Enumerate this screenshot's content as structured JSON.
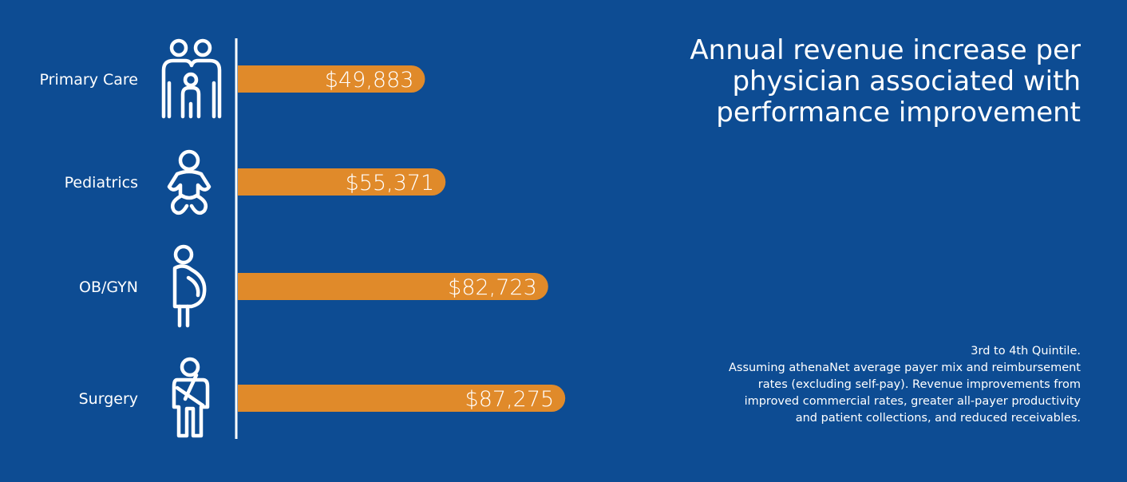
{
  "title_lines": [
    "Annual revenue increase per",
    "physician associated with",
    "performance improvement"
  ],
  "footnote_lines": [
    "3rd to 4th Quintile.",
    "Assuming athenaNet average payer mix and reimbursement",
    "rates (excluding self-pay). Revenue improvements from",
    "improved commercial rates, greater all-payer productivity",
    "and patient collections, and reduced receivables."
  ],
  "colors": {
    "background": "#0d4c93",
    "bar": "#e08a2a",
    "text": "#ffffff"
  },
  "chart_data": {
    "type": "bar",
    "orientation": "horizontal",
    "categories": [
      "Primary Care",
      "Pediatrics",
      "OB/GYN",
      "Surgery"
    ],
    "values": [
      49883,
      55371,
      82723,
      87275
    ],
    "value_labels": [
      "$49,883",
      "$55,371",
      "$82,723",
      "$87,275"
    ],
    "icons": [
      "family-icon",
      "baby-icon",
      "pregnant-woman-icon",
      "injured-person-icon"
    ],
    "xlim": [
      0,
      100000
    ],
    "grid": false,
    "legend": "none"
  }
}
